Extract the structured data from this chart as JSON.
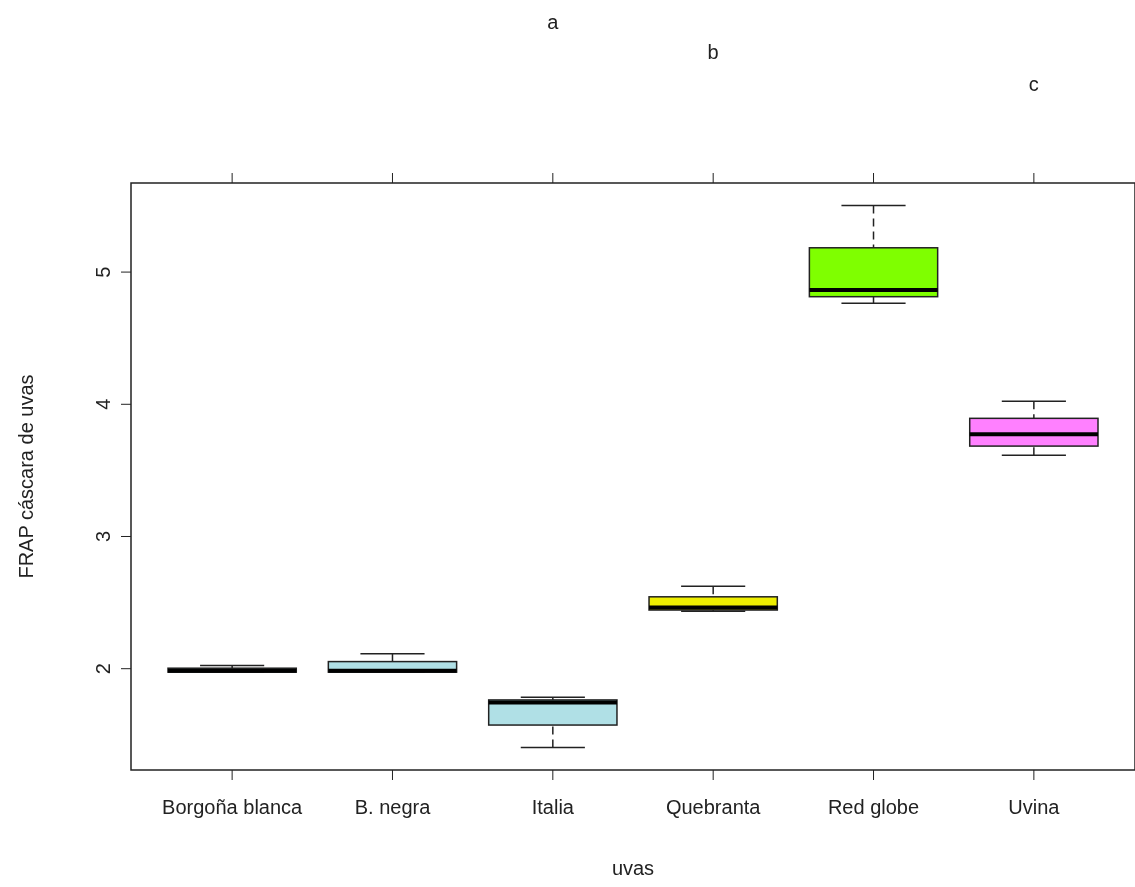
{
  "chart_data": {
    "type": "box",
    "xlabel": "uvas",
    "ylabel": "FRAP cáscara de uvas",
    "categories": [
      "Borgoña blanca",
      "B. negra",
      "Italia",
      "Quebranta",
      "Red globe",
      "Uvina"
    ],
    "colors": [
      "#b0e0e6",
      "#b0e0e6",
      "#b0e0e6",
      "#eeee00",
      "#7fff00",
      "#ff80ff"
    ],
    "boxes": [
      {
        "low": 1.97,
        "q1": 1.97,
        "median": 1.98,
        "q3": 2.0,
        "high": 2.02
      },
      {
        "low": 1.97,
        "q1": 1.97,
        "median": 1.98,
        "q3": 2.05,
        "high": 2.11
      },
      {
        "low": 1.4,
        "q1": 1.57,
        "median": 1.74,
        "q3": 1.76,
        "high": 1.78
      },
      {
        "low": 2.43,
        "q1": 2.44,
        "median": 2.46,
        "q3": 2.54,
        "high": 2.62
      },
      {
        "low": 4.76,
        "q1": 4.81,
        "median": 4.86,
        "q3": 5.18,
        "high": 5.5
      },
      {
        "low": 3.61,
        "q1": 3.68,
        "median": 3.77,
        "q3": 3.89,
        "high": 4.02
      }
    ],
    "ylim": [
      1.23,
      5.67
    ],
    "yticks": [
      2,
      3,
      4,
      5
    ],
    "annotations": [
      "a",
      "b",
      "c"
    ]
  }
}
